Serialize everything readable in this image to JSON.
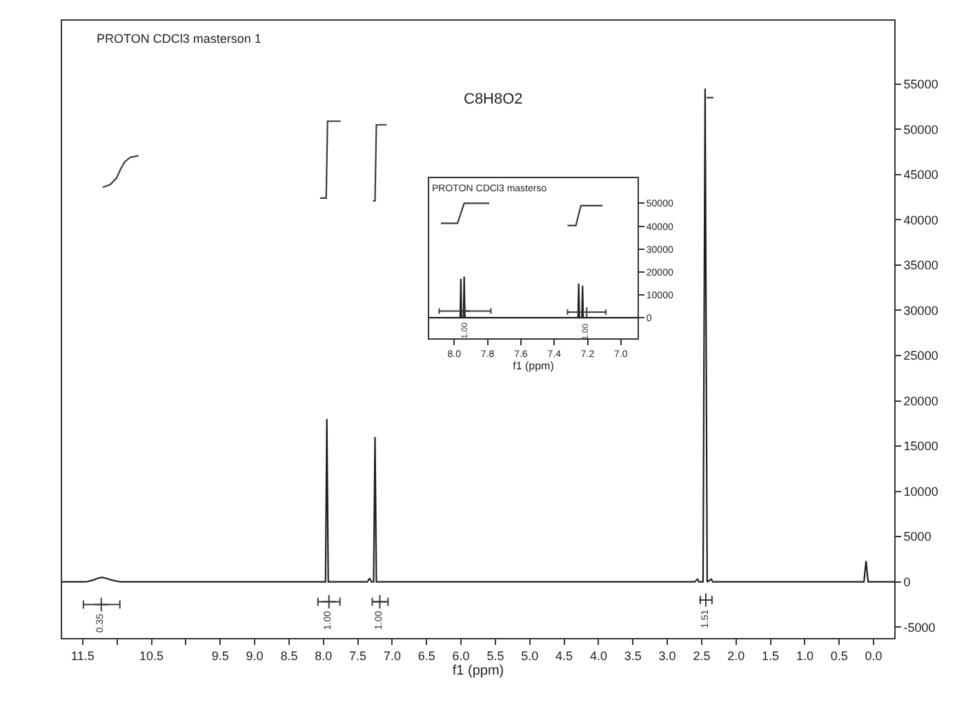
{
  "chart_data": [
    {
      "type": "line",
      "title": "PROTON CDCl3 masterson 1",
      "subtitle": "C8H8O2",
      "xlabel": "f1 (ppm)",
      "xlim": [
        11.8,
        -0.3
      ],
      "xticks": [
        11.5,
        {
          "value": 11,
          "label": null
        },
        10.5,
        {
          "value": 10,
          "label": null
        },
        9.5,
        {
          "value": 9,
          "label": "9.0"
        },
        8.5,
        {
          "value": 8,
          "label": "8.0"
        },
        7.5,
        {
          "value": 7,
          "label": "7.0"
        },
        6.5,
        {
          "value": 6,
          "label": "6.0"
        },
        5.5,
        {
          "value": 5,
          "label": "5.0"
        },
        4.5,
        {
          "value": 4,
          "label": "4.0"
        },
        3.5,
        {
          "value": 3,
          "label": "3.0"
        },
        2.5,
        {
          "value": 2,
          "label": "2.0"
        },
        1.5,
        {
          "value": 1,
          "label": "1.0"
        },
        0.5,
        {
          "value": 0,
          "label": "0.0"
        }
      ],
      "ylim": [
        -6200,
        62000
      ],
      "yticks": [
        -5000,
        0,
        5000,
        10000,
        15000,
        20000,
        25000,
        30000,
        35000,
        40000,
        45000,
        50000,
        55000
      ],
      "annotations": [
        {
          "text": "0.35",
          "x": 11.23,
          "y": -2500
        },
        {
          "text": "1.00",
          "x": 7.92,
          "y": -2200
        },
        {
          "text": "1.00",
          "x": 7.18,
          "y": -2200
        },
        {
          "text": "1.51",
          "x": 2.44,
          "y": -2000
        }
      ],
      "series": [
        {
          "color": "#1f1f1f",
          "x": [
            11.8,
            11.45,
            11.35,
            11.28,
            11.22,
            11.16,
            11.08,
            10.95,
            8.0,
            7.97,
            7.95,
            7.93,
            7.36,
            7.33,
            7.3,
            7.27,
            7.25,
            7.23,
            2.6,
            2.56,
            2.54,
            2.48,
            2.45,
            2.42,
            2.36,
            2.34,
            0.14,
            0.11,
            0.08,
            -0.3
          ],
          "values": [
            0,
            0,
            200,
            400,
            500,
            400,
            200,
            0,
            0,
            0,
            18000,
            0,
            0,
            400,
            0,
            0,
            16000,
            0,
            0,
            300,
            0,
            0,
            54500,
            0,
            300,
            0,
            0,
            2300,
            0,
            0
          ]
        },
        {
          "color": "#3a3a3a",
          "x": [
            11.21,
            11.1,
            11.01,
            10.95,
            10.89,
            10.81,
            10.69
          ],
          "values": [
            43600,
            43900,
            44600,
            45600,
            46400,
            46900,
            47100
          ]
        },
        {
          "color": "#3a3a3a",
          "x": [
            8.05,
            7.96,
            7.94,
            7.75
          ],
          "values": [
            42400,
            42400,
            50900,
            50900
          ]
        },
        {
          "color": "#3a3a3a",
          "x": [
            7.28,
            7.25,
            7.23,
            7.08
          ],
          "values": [
            42100,
            42100,
            50500,
            50500
          ]
        },
        {
          "color": "#3a3a3a",
          "x": [
            2.43,
            2.33
          ],
          "values": [
            53500,
            53500
          ]
        },
        {
          "type": "scatter",
          "marker": "cross",
          "color": "#3a3a3a",
          "x": [
            11.23,
            7.92,
            7.18,
            2.44
          ],
          "values": [
            -2500,
            -2200,
            -2200,
            -2000
          ],
          "xerrors": [
            [
              10.96,
              11.49
            ],
            [
              7.76,
              8.08
            ],
            [
              7.06,
              7.29
            ],
            [
              2.35,
              2.52
            ]
          ]
        }
      ]
    },
    {
      "type": "line",
      "title": "PROTON CDCl3 masterso",
      "xlabel": "f1 (ppm)",
      "xlim": [
        8.15,
        6.9
      ],
      "xticks": [
        {
          "value": 8,
          "label": "8.0"
        },
        7.8,
        7.6,
        7.4,
        7.2,
        {
          "value": 7,
          "label": "7.0"
        }
      ],
      "ylim": [
        -9000,
        61000
      ],
      "yticks": [
        0,
        10000,
        20000,
        30000,
        40000,
        50000
      ],
      "annotations": [
        {
          "text": "1.00",
          "x": 7.935,
          "y": 2900
        },
        {
          "text": "1.00",
          "x": 7.205,
          "y": 2500
        }
      ],
      "series": [
        {
          "color": "#1f1f1f",
          "x": [
            8.15,
            7.975,
            7.964,
            7.96,
            7.956,
            7.944,
            7.94,
            7.936,
            7.92,
            7.27,
            7.257,
            7.253,
            7.249,
            7.234,
            7.23,
            7.226,
            7.21,
            6.9
          ],
          "values": [
            0,
            0,
            0,
            17000,
            0,
            0,
            18000,
            0,
            0,
            0,
            0,
            15000,
            0,
            0,
            14000,
            0,
            0,
            0
          ]
        },
        {
          "color": "#3a3a3a",
          "x": [
            8.08,
            7.98,
            7.94,
            7.79
          ],
          "values": [
            41300,
            41300,
            50000,
            50000
          ]
        },
        {
          "color": "#3a3a3a",
          "x": [
            7.32,
            7.27,
            7.24,
            7.11
          ],
          "values": [
            40300,
            40300,
            49000,
            49000
          ]
        },
        {
          "type": "scatter",
          "marker": "cross",
          "color": "#3a3a3a",
          "x": [
            7.935,
            7.205
          ],
          "values": [
            2900,
            2500
          ],
          "xerrors": [
            [
              7.78,
              8.09
            ],
            [
              7.09,
              7.32
            ]
          ]
        }
      ]
    }
  ]
}
